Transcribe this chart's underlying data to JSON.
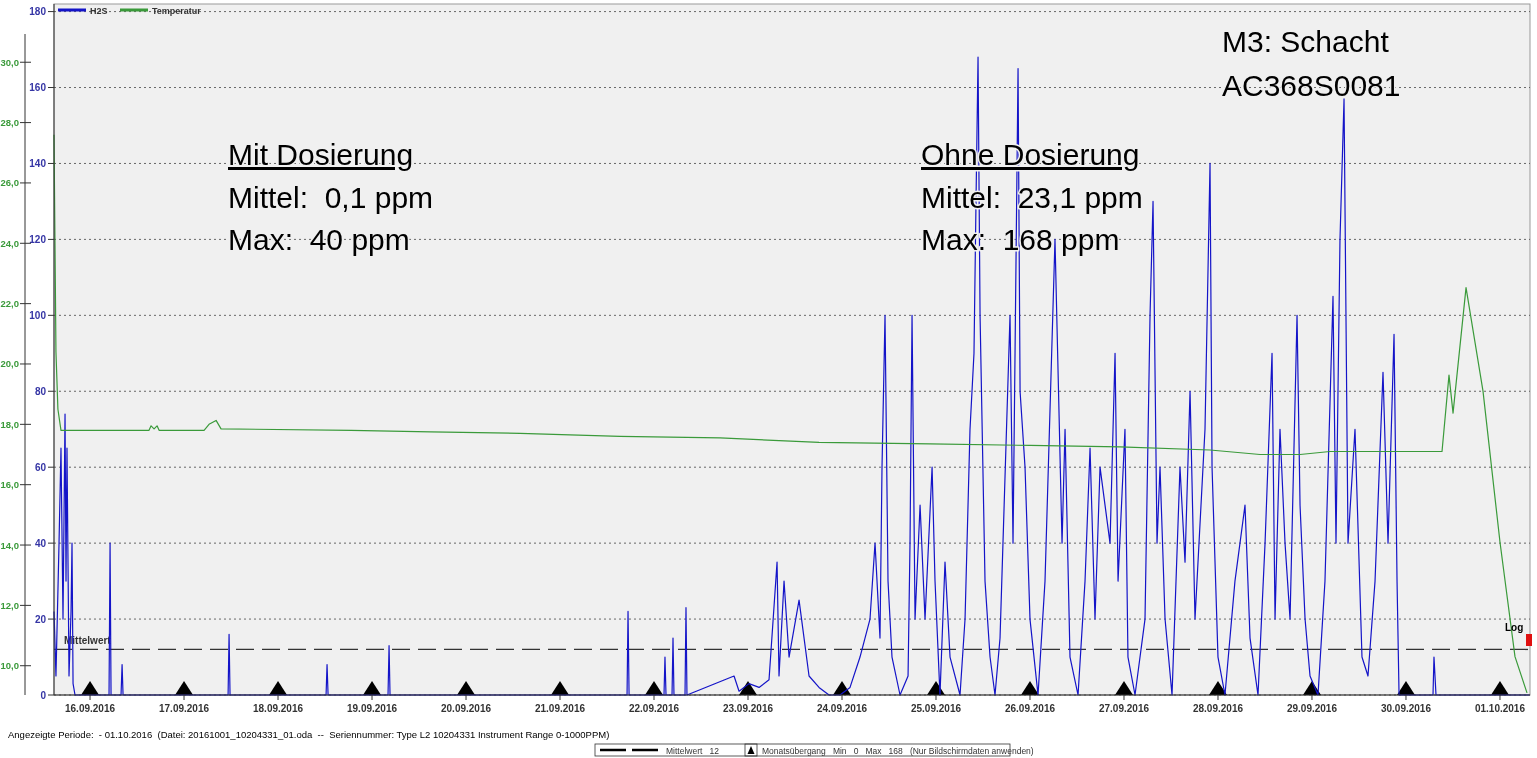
{
  "chart_data": {
    "type": "line",
    "xlim": [
      "2016-09-15T14:48",
      "2016-10-01T07:40"
    ],
    "xticks": [
      {
        "value": "2016-09-16",
        "label": "16.09.2016"
      },
      {
        "value": "2016-09-17",
        "label": "17.09.2016"
      },
      {
        "value": "2016-09-18",
        "label": "18.09.2016"
      },
      {
        "value": "2016-09-19",
        "label": "19.09.2016"
      },
      {
        "value": "2016-09-20",
        "label": "20.09.2016"
      },
      {
        "value": "2016-09-21",
        "label": "21.09.2016"
      },
      {
        "value": "2016-09-22",
        "label": "22.09.2016"
      },
      {
        "value": "2016-09-23",
        "label": "23.09.2016"
      },
      {
        "value": "2016-09-24",
        "label": "24.09.2016"
      },
      {
        "value": "2016-09-25",
        "label": "25.09.2016"
      },
      {
        "value": "2016-09-26",
        "label": "26.09.2016"
      },
      {
        "value": "2016-09-27",
        "label": "27.09.2016"
      },
      {
        "value": "2016-09-28",
        "label": "28.09.2016"
      },
      {
        "value": "2016-09-29",
        "label": "29.09.2016"
      },
      {
        "value": "2016-09-30",
        "label": "30.09.2016"
      },
      {
        "value": "2016-10-01",
        "label": "01.10.2016"
      }
    ],
    "ylim": [
      0,
      182
    ],
    "yticks": [
      0,
      20,
      40,
      60,
      80,
      100,
      120,
      140,
      160,
      180
    ],
    "y2lim": [
      9.03,
      31.93
    ],
    "y2ticks": [
      {
        "value": 10,
        "label": "10,0"
      },
      {
        "value": 12,
        "label": "12,0"
      },
      {
        "value": 14,
        "label": "14,0"
      },
      {
        "value": 16,
        "label": "16,0"
      },
      {
        "value": 18,
        "label": "18,0"
      },
      {
        "value": 20,
        "label": "20,0"
      },
      {
        "value": 22,
        "label": "22,0"
      },
      {
        "value": 24,
        "label": "24,0"
      },
      {
        "value": 26,
        "label": "26,0"
      },
      {
        "value": 28,
        "label": "28,0"
      },
      {
        "value": 30,
        "label": "30,0"
      }
    ],
    "grid": "y",
    "legend": "top left",
    "line_style": "solid",
    "ref_lines": [
      {
        "axis": "y",
        "value": 12,
        "label": "Mittelwert",
        "color": "#333333",
        "line_style": "dashed"
      }
    ],
    "annotations": [
      "Mit Dosierung",
      "Mittel:  0,1 ppm",
      "Max:  40 ppm",
      "Ohne Dosierung",
      "Mittel:  23,1 ppm",
      "Max:  168 ppm",
      "M3: Schacht",
      "AC368S0081",
      "Angezeigte Periode:  - 01.10.2016  (Datei: 20161001_10204331_01.oda  --  Seriennummer: Type L2 10204331 Instrument Range 0-1000PPM)",
      "Log",
      "Mittelwert   12",
      "Monatsübergang   Min   0   Max   168   (Nur Bildschirmdaten anwenden)"
    ],
    "series": [
      {
        "name": "H2S",
        "axis": "y",
        "color": "#1414c8",
        "x": [
          "2016-09-15T14:48",
          "2016-09-15T15:18",
          "2016-09-15T16:05",
          "2016-09-15T16:35",
          "2016-09-15T17:06",
          "2016-09-15T17:37",
          "2016-09-15T17:52",
          "2016-09-15T18:07",
          "2016-09-15T18:38",
          "2016-09-15T19:09",
          "2016-09-15T19:24",
          "2016-09-15T19:40",
          "2016-09-15T20:10",
          "2016-09-16T04:51",
          "2016-09-16T05:07",
          "2016-09-16T05:22",
          "2016-09-16T07:55",
          "2016-09-16T08:11",
          "2016-09-16T08:26",
          "2016-09-17T11:15",
          "2016-09-17T11:30",
          "2016-09-17T11:45",
          "2016-09-18T12:16",
          "2016-09-18T12:31",
          "2016-09-18T12:47",
          "2016-09-19T04:05",
          "2016-09-19T04:21",
          "2016-09-19T04:36",
          "2016-09-21T17:07",
          "2016-09-21T17:22",
          "2016-09-21T17:38",
          "2016-09-22T02:33",
          "2016-09-22T02:48",
          "2016-09-22T03:04",
          "2016-09-22T04:36",
          "2016-09-22T04:51",
          "2016-09-22T05:06",
          "2016-09-22T07:55",
          "2016-09-22T08:10",
          "2016-09-22T08:25",
          "2016-09-22T20:26",
          "2016-09-22T21:43",
          "2016-09-23T00:15",
          "2016-09-23T02:49",
          "2016-09-23T05:22",
          "2016-09-23T07:25",
          "2016-09-23T07:55",
          "2016-09-23T09:12",
          "2016-09-23T10:29",
          "2016-09-23T13:02",
          "2016-09-23T15:35",
          "2016-09-23T18:08",
          "2016-09-23T20:41",
          "2016-09-23T23:29",
          "2016-09-24T02:03",
          "2016-09-24T04:36",
          "2016-09-24T07:09",
          "2016-09-24T08:26",
          "2016-09-24T09:42",
          "2016-09-24T10:13",
          "2016-09-24T10:59",
          "2016-09-24T11:45",
          "2016-09-24T12:46",
          "2016-09-24T14:49",
          "2016-09-24T16:52",
          "2016-09-24T17:22",
          "2016-09-24T17:53",
          "2016-09-24T18:39",
          "2016-09-24T19:56",
          "2016-09-24T21:12",
          "2016-09-24T23:00",
          "2016-09-24T23:45",
          "2016-09-25T01:01",
          "2016-09-25T02:18",
          "2016-09-25T03:35",
          "2016-09-25T06:08",
          "2016-09-25T07:25",
          "2016-09-25T08:41",
          "2016-09-25T09:42",
          "2016-09-25T10:13",
          "2016-09-25T10:44",
          "2016-09-25T11:15",
          "2016-09-25T12:31",
          "2016-09-25T13:48",
          "2016-09-25T15:04",
          "2016-09-25T16:21",
          "2016-09-25T18:54",
          "2016-09-25T19:40",
          "2016-09-25T20:57",
          "2016-09-25T21:28",
          "2016-09-25T22:44",
          "2016-09-26T00:00",
          "2016-09-26T02:03",
          "2016-09-26T03:50",
          "2016-09-26T06:23",
          "2016-09-26T08:11",
          "2016-09-26T08:57",
          "2016-09-26T10:13",
          "2016-09-26T12:16",
          "2016-09-26T14:03",
          "2016-09-26T15:20",
          "2016-09-26T16:36",
          "2016-09-26T17:53",
          "2016-09-26T20:26",
          "2016-09-26T21:43",
          "2016-09-26T22:29",
          "2016-09-27T00:15",
          "2016-09-27T01:01",
          "2016-09-27T02:49",
          "2016-09-27T05:22",
          "2016-09-27T06:39",
          "2016-09-27T07:25",
          "2016-09-27T08:26",
          "2016-09-27T09:12",
          "2016-09-27T10:29",
          "2016-09-27T12:16",
          "2016-09-27T14:18",
          "2016-09-27T15:35",
          "2016-09-27T16:52",
          "2016-09-27T18:08",
          "2016-09-27T20:41",
          "2016-09-27T21:58",
          "2016-09-27T22:29",
          "2016-09-28T00:00",
          "2016-09-28T01:47",
          "2016-09-28T04:20",
          "2016-09-28T06:54",
          "2016-09-28T08:11",
          "2016-09-28T10:13",
          "2016-09-28T12:01",
          "2016-09-28T13:48",
          "2016-09-28T14:34",
          "2016-09-28T15:50",
          "2016-09-28T17:07",
          "2016-09-28T18:24",
          "2016-09-28T20:11",
          "2016-09-28T20:57",
          "2016-09-28T22:14",
          "2016-09-28T23:30",
          "2016-09-29T01:32",
          "2016-09-29T03:19",
          "2016-09-29T05:22",
          "2016-09-29T06:08",
          "2016-09-29T07:09",
          "2016-09-29T08:11",
          "2016-09-29T09:12",
          "2016-09-29T10:59",
          "2016-09-29T12:46",
          "2016-09-29T14:18",
          "2016-09-29T16:06",
          "2016-09-29T18:08",
          "2016-09-29T19:25",
          "2016-09-29T20:57",
          "2016-09-29T21:43",
          "2016-09-29T22:14",
          "2016-09-30T06:54",
          "2016-09-30T07:09",
          "2016-09-30T07:40",
          "2016-10-01T07:30"
        ],
        "values": [
          22,
          5,
          40,
          65,
          20,
          74,
          30,
          65,
          5,
          22,
          40,
          3,
          0,
          0,
          40,
          0,
          0,
          8,
          0,
          0,
          16,
          0,
          0,
          8,
          0,
          0,
          13,
          0,
          0,
          22,
          0,
          0,
          10,
          0,
          0,
          15,
          0,
          0,
          23,
          0,
          5,
          1,
          3,
          2,
          4,
          35,
          5,
          30,
          10,
          25,
          5,
          2,
          0,
          0,
          2,
          10,
          20,
          40,
          15,
          60,
          100,
          30,
          10,
          0,
          5,
          40,
          100,
          20,
          50,
          20,
          60,
          30,
          0,
          35,
          10,
          0,
          20,
          70,
          90,
          130,
          168,
          100,
          30,
          10,
          0,
          15,
          100,
          40,
          165,
          80,
          60,
          20,
          0,
          30,
          120,
          40,
          70,
          10,
          0,
          30,
          65,
          20,
          60,
          40,
          90,
          30,
          70,
          10,
          0,
          20,
          100,
          130,
          40,
          60,
          20,
          0,
          60,
          35,
          80,
          20,
          70,
          140,
          60,
          10,
          0,
          30,
          50,
          15,
          0,
          40,
          90,
          20,
          70,
          40,
          20,
          100,
          50,
          20,
          5,
          0,
          30,
          105,
          40,
          120,
          157,
          40,
          70,
          10,
          5,
          30,
          85,
          40,
          95,
          30,
          0,
          0,
          10,
          0,
          0
        ]
      },
      {
        "name": "Temperatur",
        "axis": "y2",
        "color": "#3a9a3a",
        "x": [
          "2016-09-15T14:48",
          "2016-09-15T15:03",
          "2016-09-15T15:18",
          "2016-09-15T15:48",
          "2016-09-15T16:35",
          "2016-09-16T15:04",
          "2016-09-16T15:35",
          "2016-09-16T16:21",
          "2016-09-16T17:07",
          "2016-09-16T17:38",
          "2016-09-17T05:07",
          "2016-09-17T06:23",
          "2016-09-17T08:11",
          "2016-09-17T09:27",
          "2016-09-18T18:38",
          "2016-09-19T14:57",
          "2016-09-20T13:48",
          "2016-09-21T15:20",
          "2016-09-22T16:52",
          "2016-09-23T18:08",
          "2016-09-24T22:29",
          "2016-09-26T00:00",
          "2016-09-26T23:00",
          "2016-09-27T21:58",
          "2016-09-28T10:44",
          "2016-09-28T20:57",
          "2016-09-29T04:36",
          "2016-09-30T09:12",
          "2016-09-30T10:59",
          "2016-09-30T12:01",
          "2016-09-30T15:20",
          "2016-09-30T19:40",
          "2016-10-01T00:00",
          "2016-10-01T03:50",
          "2016-10-01T06:54"
        ],
        "values": [
          27.6,
          24.0,
          20.4,
          18.5,
          17.8,
          17.8,
          17.95,
          17.85,
          17.95,
          17.8,
          17.8,
          18.0,
          18.13,
          17.85,
          17.8,
          17.75,
          17.7,
          17.6,
          17.55,
          17.4,
          17.35,
          17.3,
          17.25,
          17.15,
          17.0,
          17.0,
          17.1,
          17.1,
          19.63,
          18.37,
          22.53,
          19.1,
          14.1,
          10.3,
          9.1
        ]
      }
    ]
  }
}
